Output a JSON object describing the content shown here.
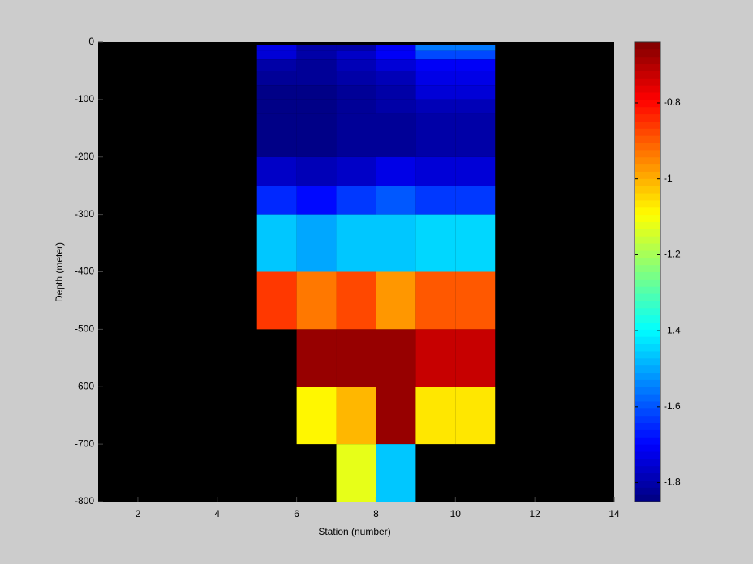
{
  "chart_data": {
    "type": "heatmap",
    "xlabel": "Station (number)",
    "ylabel": "Depth (meter)",
    "xlim": [
      1,
      14
    ],
    "xticks": [
      2,
      4,
      6,
      8,
      10,
      12,
      14
    ],
    "ylim": [
      -800,
      0
    ],
    "yticks": [
      0,
      -100,
      -200,
      -300,
      -400,
      -500,
      -600,
      -700,
      -800
    ],
    "x_edges": [
      5,
      6,
      7,
      8,
      9,
      10,
      11
    ],
    "y_edges": [
      -5,
      -15,
      -30,
      -50,
      -75,
      -100,
      -125,
      -200,
      -250,
      -300,
      -400,
      -500,
      -600,
      -700,
      -800
    ],
    "values": [
      [
        -1.72,
        -1.8,
        -1.8,
        -1.7,
        -1.55,
        -1.55
      ],
      [
        -1.75,
        -1.8,
        -1.77,
        -1.7,
        -1.62,
        -1.62
      ],
      [
        -1.8,
        -1.82,
        -1.78,
        -1.75,
        -1.7,
        -1.7
      ],
      [
        -1.82,
        -1.83,
        -1.8,
        -1.78,
        -1.72,
        -1.72
      ],
      [
        -1.85,
        -1.85,
        -1.82,
        -1.8,
        -1.75,
        -1.75
      ],
      [
        -1.85,
        -1.85,
        -1.83,
        -1.81,
        -1.78,
        -1.78
      ],
      [
        -1.85,
        -1.85,
        -1.83,
        -1.82,
        -1.81,
        -1.81
      ],
      [
        -1.76,
        -1.79,
        -1.77,
        -1.72,
        -1.74,
        -1.74
      ],
      [
        -1.65,
        -1.68,
        -1.63,
        -1.6,
        -1.64,
        -1.64
      ],
      [
        -1.46,
        -1.5,
        -1.47,
        -1.46,
        -1.45,
        -1.45
      ],
      [
        -0.85,
        -0.93,
        -0.88,
        -0.97,
        -0.89,
        -0.89
      ],
      [
        null,
        -0.66,
        -0.66,
        -0.66,
        -0.72,
        -0.72
      ],
      [
        null,
        -1.08,
        -1.0,
        -0.67,
        -1.07,
        -1.07
      ],
      [
        null,
        null,
        -1.13,
        -1.47,
        null,
        null
      ]
    ],
    "colormap": "jet",
    "background": "#000000",
    "clim": [
      -1.85,
      -0.64
    ],
    "cticks": [
      -0.8,
      -1,
      -1.2,
      -1.4,
      -1.6,
      -1.8
    ]
  }
}
